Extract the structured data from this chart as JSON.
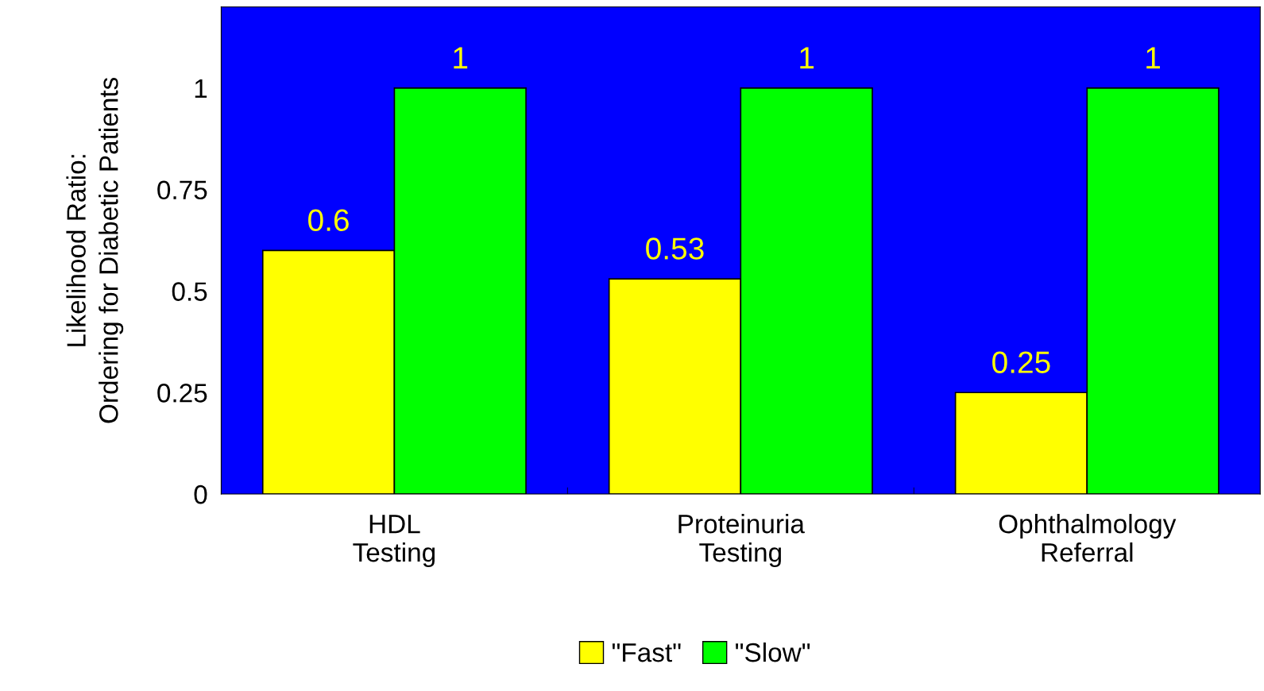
{
  "chart_data": {
    "type": "bar",
    "ylabel": "Likelihood Ratio:\nOrdering for Diabetic Patients",
    "categories": [
      "HDL\nTesting",
      "Proteinuria\nTesting",
      "Ophthalmology\nReferral"
    ],
    "series": [
      {
        "name": "\"Fast\"",
        "color": "#ffff00",
        "values": [
          0.6,
          0.53,
          0.25
        ]
      },
      {
        "name": "\"Slow\"",
        "color": "#00ff00",
        "values": [
          1,
          1,
          1
        ]
      }
    ],
    "ylim": [
      0,
      1.2
    ],
    "yticks": [
      0,
      0.25,
      0.5,
      0.75,
      1
    ],
    "data_labels": true,
    "legend": "bottom",
    "grid": false
  }
}
